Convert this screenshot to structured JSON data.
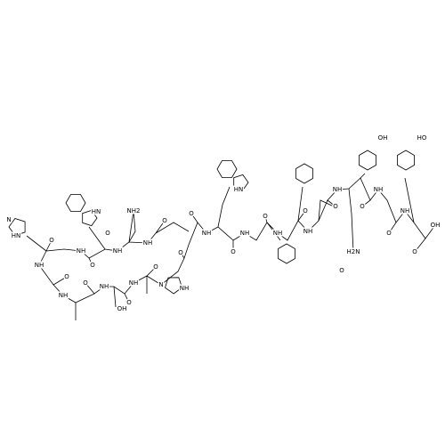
{
  "atoms": [
    {
      "label": "OH"
    },
    {
      "label": "HO"
    },
    {
      "label": "HN"
    },
    {
      "label": "HN"
    },
    {
      "label": "NH2"
    },
    {
      "label": "O"
    },
    {
      "label": "OH"
    },
    {
      "label": "O"
    },
    {
      "label": "NH"
    },
    {
      "label": "O"
    },
    {
      "label": "NH"
    },
    {
      "label": "O"
    },
    {
      "label": "NH"
    },
    {
      "label": "O"
    },
    {
      "label": "H2N"
    },
    {
      "label": "O"
    },
    {
      "label": "NH"
    },
    {
      "label": "O"
    },
    {
      "label": "NH"
    },
    {
      "label": "O"
    },
    {
      "label": "NH"
    },
    {
      "label": "O"
    },
    {
      "label": "NH"
    },
    {
      "label": "O"
    },
    {
      "label": "NH"
    },
    {
      "label": "O"
    },
    {
      "label": "N"
    },
    {
      "label": "O"
    },
    {
      "label": "NH"
    },
    {
      "label": "O"
    },
    {
      "label": "NH"
    },
    {
      "label": "OH"
    },
    {
      "label": "O"
    },
    {
      "label": "NH"
    },
    {
      "label": "O"
    },
    {
      "label": "NH"
    },
    {
      "label": "O"
    },
    {
      "label": "NH"
    },
    {
      "label": "O"
    },
    {
      "label": "NH"
    },
    {
      "label": "O"
    },
    {
      "label": "NH"
    },
    {
      "label": "N"
    },
    {
      "label": "HN"
    }
  ]
}
